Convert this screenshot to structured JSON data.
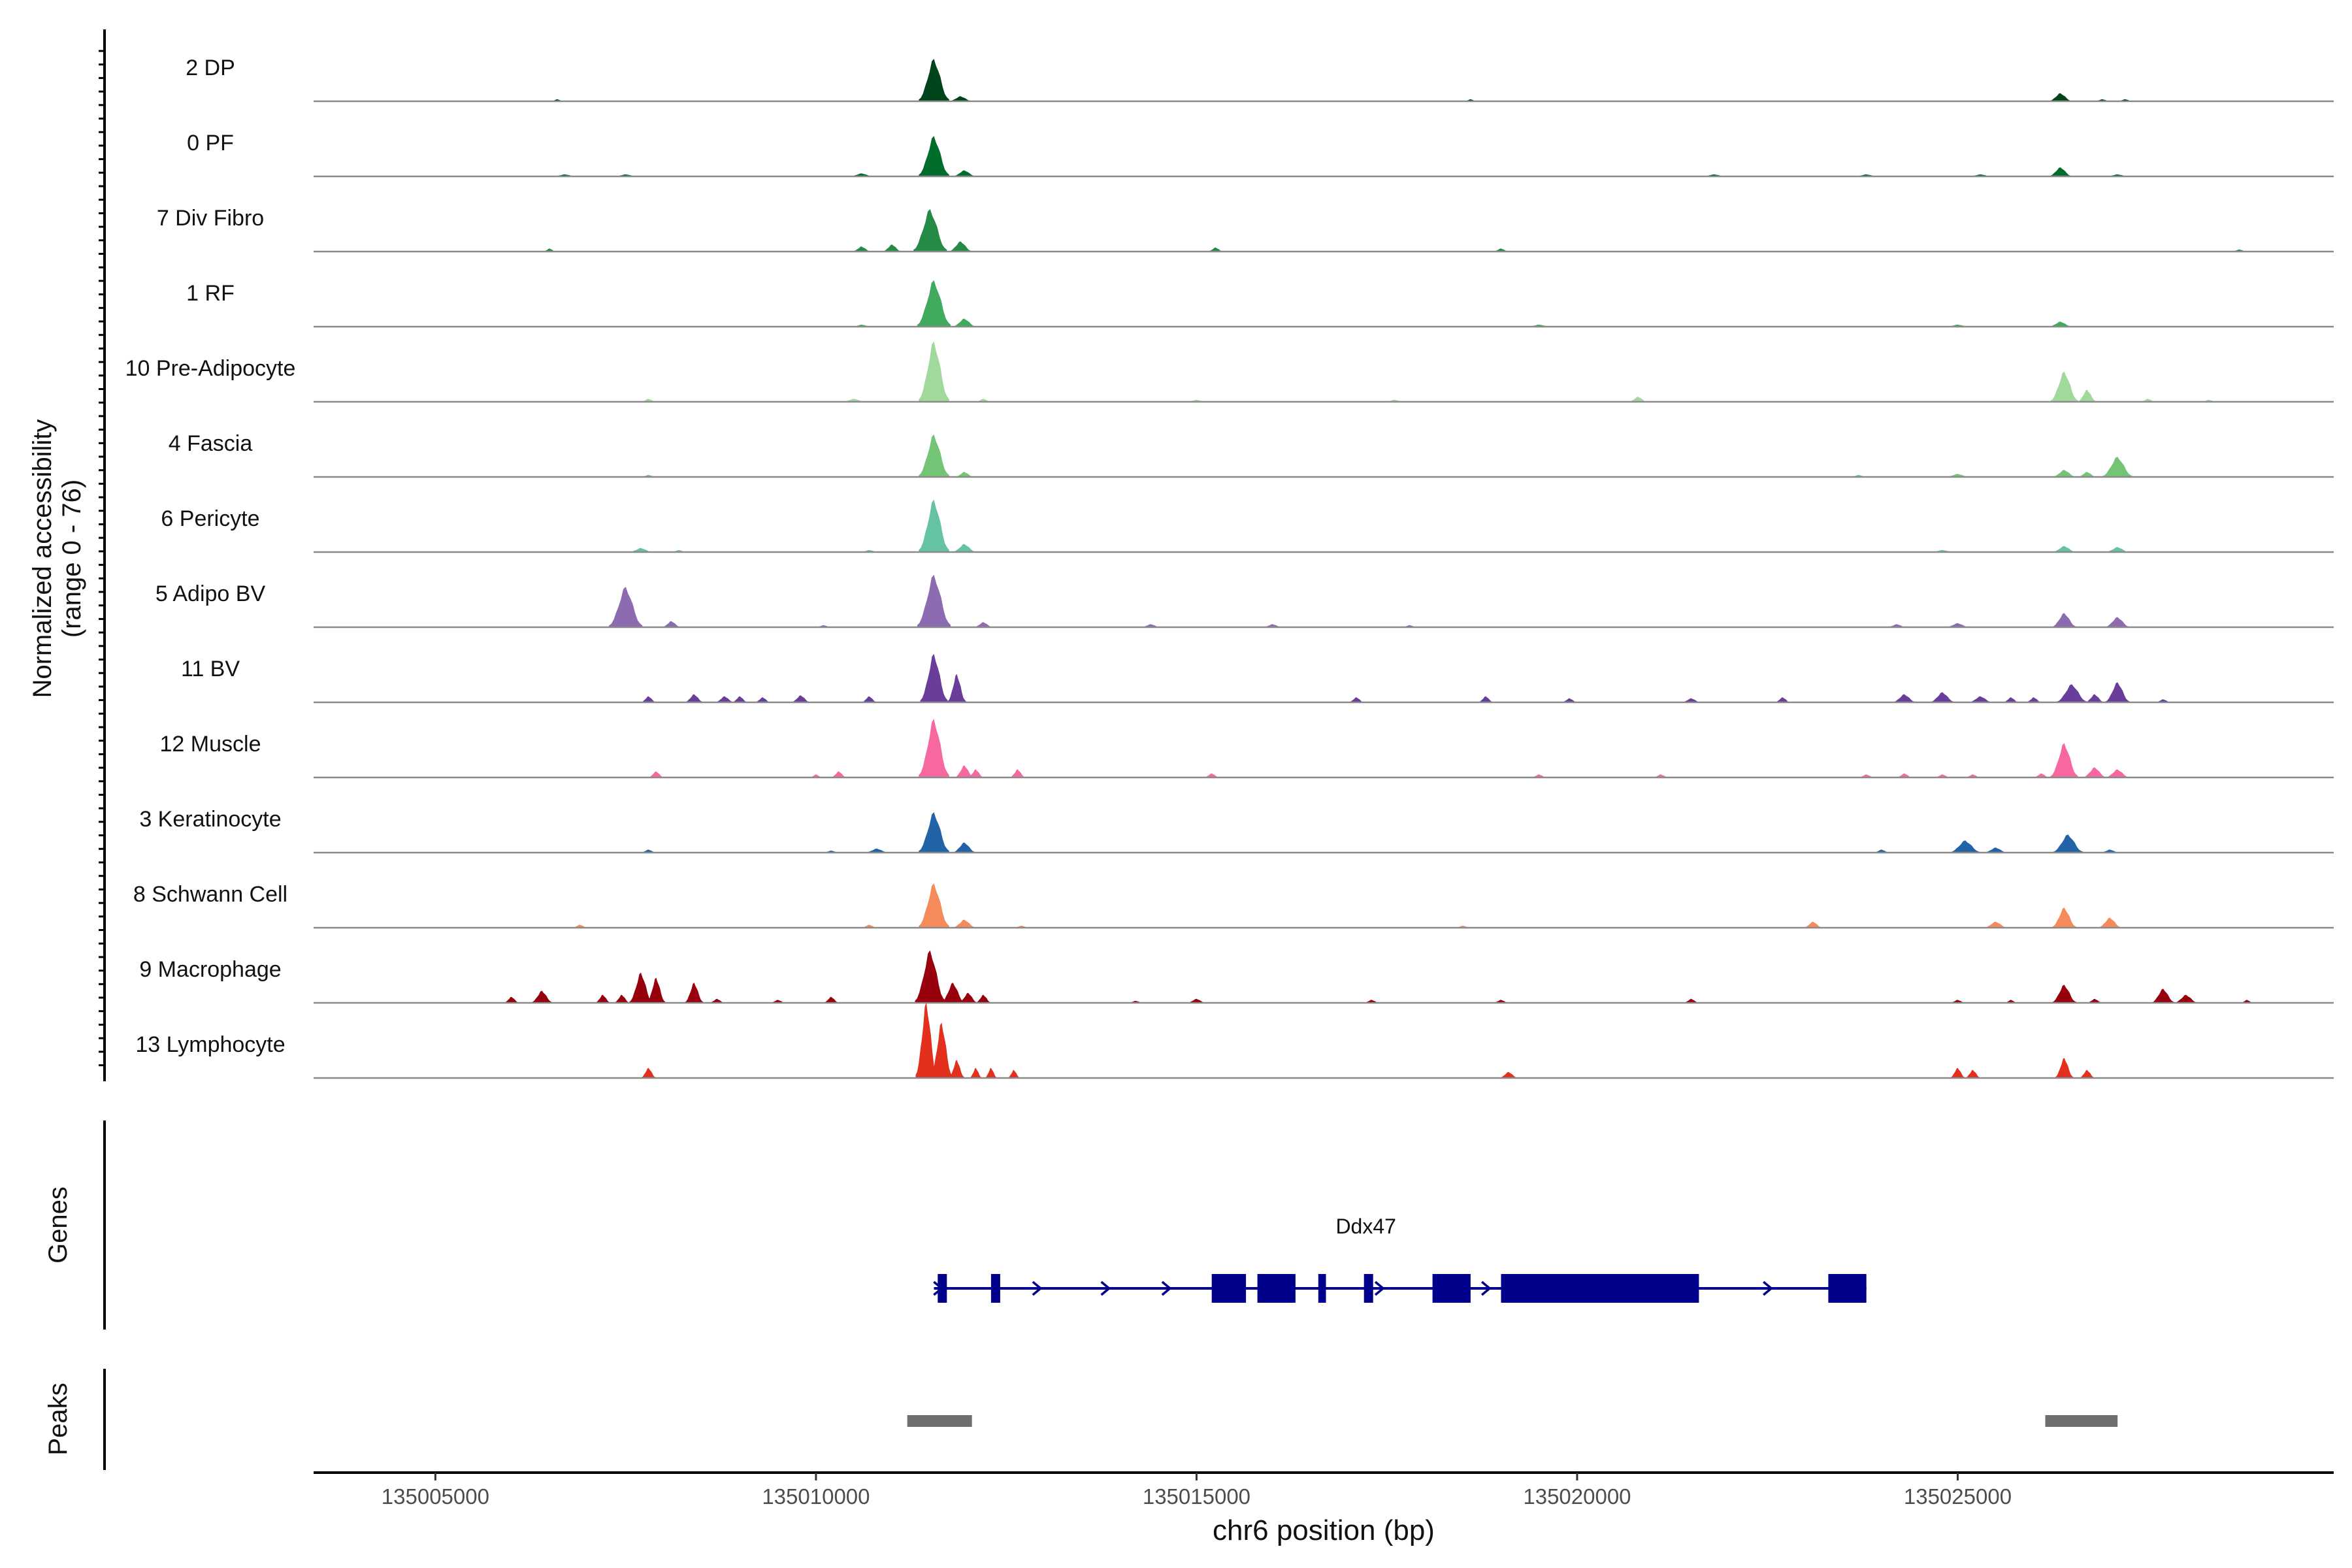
{
  "chart_data": {
    "type": "area",
    "title": "",
    "chromosome": "chr6",
    "xlabel": "chr6 position (bp)",
    "ylabel_line1": "Normalized accessibility",
    "ylabel_line2": "(range 0 - 76)",
    "yrange": [
      0,
      76
    ],
    "xlim": [
      135003400,
      135029940
    ],
    "xticks": [
      135005000,
      135010000,
      135015000,
      135020000,
      135025000
    ],
    "xtick_labels": [
      "135005000",
      "135010000",
      "135015000",
      "135020000",
      "135025000"
    ],
    "tracks": [
      {
        "name": "2 DP",
        "color": "#00441b",
        "peaks": [
          [
            135011550,
            42,
            200
          ],
          [
            135026350,
            8,
            150
          ],
          [
            135011900,
            5,
            150
          ],
          [
            135006600,
            2,
            80
          ],
          [
            135018600,
            2,
            80
          ],
          [
            135026900,
            2,
            100
          ],
          [
            135027200,
            2,
            100
          ]
        ]
      },
      {
        "name": "0 PF",
        "color": "#006d2c",
        "peaks": [
          [
            135011550,
            40,
            200
          ],
          [
            135011950,
            6,
            150
          ],
          [
            135026350,
            9,
            150
          ],
          [
            135010600,
            3,
            150
          ],
          [
            135006700,
            2,
            150
          ],
          [
            135007500,
            2,
            150
          ],
          [
            135021800,
            2,
            150
          ],
          [
            135023800,
            2,
            150
          ],
          [
            135025300,
            2,
            150
          ],
          [
            135027100,
            2,
            150
          ]
        ]
      },
      {
        "name": "7 Div Fibro",
        "color": "#238b45",
        "peaks": [
          [
            135011500,
            42,
            220
          ],
          [
            135011900,
            10,
            150
          ],
          [
            135011000,
            7,
            120
          ],
          [
            135010600,
            5,
            120
          ],
          [
            135015250,
            4,
            100
          ],
          [
            135019000,
            3,
            100
          ],
          [
            135006500,
            3,
            80
          ],
          [
            135028700,
            2,
            100
          ]
        ]
      },
      {
        "name": "1 RF",
        "color": "#41ab5d",
        "peaks": [
          [
            135011550,
            46,
            220
          ],
          [
            135011950,
            8,
            150
          ],
          [
            135026350,
            5,
            150
          ],
          [
            135010600,
            2,
            120
          ],
          [
            135019500,
            2,
            150
          ],
          [
            135025000,
            2,
            150
          ]
        ]
      },
      {
        "name": "10 Pre-Adipocyte",
        "color": "#a1d99b",
        "peaks": [
          [
            135011550,
            60,
            200
          ],
          [
            135026400,
            30,
            180
          ],
          [
            135026700,
            12,
            120
          ],
          [
            135020800,
            5,
            120
          ],
          [
            135007800,
            3,
            100
          ],
          [
            135010500,
            3,
            150
          ],
          [
            135012200,
            3,
            100
          ],
          [
            135015000,
            2,
            120
          ],
          [
            135017600,
            2,
            120
          ],
          [
            135027500,
            3,
            100
          ],
          [
            135028300,
            2,
            100
          ]
        ]
      },
      {
        "name": "4 Fascia",
        "color": "#74c476",
        "peaks": [
          [
            135011550,
            42,
            200
          ],
          [
            135027100,
            20,
            200
          ],
          [
            135026400,
            7,
            150
          ],
          [
            135026700,
            5,
            120
          ],
          [
            135011950,
            5,
            120
          ],
          [
            135025000,
            3,
            150
          ],
          [
            135023700,
            2,
            100
          ],
          [
            135007800,
            2,
            100
          ]
        ]
      },
      {
        "name": "6 Pericyte",
        "color": "#66c2a4",
        "peaks": [
          [
            135011550,
            52,
            200
          ],
          [
            135011950,
            8,
            150
          ],
          [
            135007700,
            4,
            150
          ],
          [
            135008200,
            2,
            100
          ],
          [
            135026400,
            6,
            150
          ],
          [
            135027100,
            5,
            150
          ],
          [
            135024800,
            2,
            150
          ],
          [
            135010700,
            2,
            120
          ]
        ]
      },
      {
        "name": "5 Adipo BV",
        "color": "#8c6bb1",
        "peaks": [
          [
            135007500,
            40,
            220
          ],
          [
            135011550,
            52,
            220
          ],
          [
            135026400,
            14,
            160
          ],
          [
            135027100,
            10,
            160
          ],
          [
            135008100,
            6,
            120
          ],
          [
            135012200,
            5,
            120
          ],
          [
            135014400,
            3,
            120
          ],
          [
            135024200,
            3,
            120
          ],
          [
            135025000,
            4,
            150
          ],
          [
            135016000,
            3,
            120
          ],
          [
            135017800,
            2,
            100
          ],
          [
            135010100,
            2,
            100
          ]
        ]
      },
      {
        "name": "11 BV",
        "color": "#6a3d9a",
        "peaks": [
          [
            135011550,
            48,
            180
          ],
          [
            135011850,
            28,
            120
          ],
          [
            135027100,
            20,
            160
          ],
          [
            135026500,
            18,
            200
          ],
          [
            135026800,
            8,
            120
          ],
          [
            135024800,
            10,
            160
          ],
          [
            135024300,
            8,
            150
          ],
          [
            135025300,
            6,
            150
          ],
          [
            135007800,
            6,
            100
          ],
          [
            135008400,
            8,
            120
          ],
          [
            135008800,
            6,
            120
          ],
          [
            135009000,
            6,
            100
          ],
          [
            135009300,
            5,
            100
          ],
          [
            135009800,
            7,
            120
          ],
          [
            135010700,
            6,
            100
          ],
          [
            135017100,
            5,
            100
          ],
          [
            135018800,
            6,
            100
          ],
          [
            135019900,
            4,
            100
          ],
          [
            135021500,
            4,
            120
          ],
          [
            135022700,
            5,
            100
          ],
          [
            135025700,
            5,
            100
          ],
          [
            135026000,
            5,
            100
          ],
          [
            135027700,
            3,
            100
          ]
        ]
      },
      {
        "name": "12 Muscle",
        "color": "#f768a1",
        "peaks": [
          [
            135011550,
            58,
            200
          ],
          [
            135011950,
            12,
            120
          ],
          [
            135012100,
            8,
            100
          ],
          [
            135012650,
            8,
            100
          ],
          [
            135026400,
            34,
            180
          ],
          [
            135026800,
            10,
            150
          ],
          [
            135027100,
            8,
            150
          ],
          [
            135010300,
            6,
            100
          ],
          [
            135010000,
            3,
            80
          ],
          [
            135007900,
            6,
            100
          ],
          [
            135015200,
            4,
            100
          ],
          [
            135019500,
            3,
            100
          ],
          [
            135021100,
            3,
            100
          ],
          [
            135023800,
            3,
            100
          ],
          [
            135024300,
            4,
            100
          ],
          [
            135024800,
            3,
            100
          ],
          [
            135025200,
            3,
            100
          ],
          [
            135026100,
            4,
            100
          ]
        ]
      },
      {
        "name": "3 Keratinocyte",
        "color": "#2163a6",
        "peaks": [
          [
            135011550,
            40,
            200
          ],
          [
            135011950,
            10,
            150
          ],
          [
            135026450,
            18,
            200
          ],
          [
            135025100,
            12,
            200
          ],
          [
            135025500,
            5,
            150
          ],
          [
            135010800,
            4,
            150
          ],
          [
            135007800,
            3,
            100
          ],
          [
            135027000,
            3,
            120
          ],
          [
            135024000,
            3,
            100
          ],
          [
            135010200,
            2,
            100
          ]
        ]
      },
      {
        "name": "8 Schwann Cell",
        "color": "#f58b5a",
        "peaks": [
          [
            135011550,
            44,
            200
          ],
          [
            135011950,
            8,
            150
          ],
          [
            135026400,
            20,
            160
          ],
          [
            135027000,
            10,
            150
          ],
          [
            135023100,
            6,
            120
          ],
          [
            135025500,
            6,
            150
          ],
          [
            135010700,
            3,
            100
          ],
          [
            135006900,
            3,
            100
          ],
          [
            135012700,
            2,
            100
          ],
          [
            135018500,
            2,
            100
          ]
        ]
      },
      {
        "name": "9 Macrophage",
        "color": "#99000d",
        "peaks": [
          [
            135007700,
            30,
            150
          ],
          [
            135007900,
            25,
            120
          ],
          [
            135008400,
            20,
            120
          ],
          [
            135006400,
            12,
            140
          ],
          [
            135006000,
            6,
            100
          ],
          [
            135007200,
            8,
            100
          ],
          [
            135007450,
            8,
            100
          ],
          [
            135008700,
            4,
            100
          ],
          [
            135011500,
            52,
            200
          ],
          [
            135011800,
            20,
            150
          ],
          [
            135012000,
            10,
            120
          ],
          [
            135012200,
            8,
            100
          ],
          [
            135010200,
            6,
            100
          ],
          [
            135026400,
            18,
            160
          ],
          [
            135027700,
            14,
            150
          ],
          [
            135028000,
            8,
            150
          ],
          [
            135028800,
            3,
            80
          ],
          [
            135025000,
            3,
            100
          ],
          [
            135021500,
            4,
            100
          ],
          [
            135019000,
            3,
            100
          ],
          [
            135017300,
            3,
            100
          ],
          [
            135015000,
            4,
            120
          ],
          [
            135014200,
            2,
            100
          ],
          [
            135026800,
            4,
            100
          ],
          [
            135025700,
            3,
            80
          ],
          [
            135009500,
            3,
            100
          ]
        ]
      },
      {
        "name": "13 Lymphocyte",
        "color": "#e2301c",
        "peaks": [
          [
            135011450,
            75,
            140
          ],
          [
            135011650,
            55,
            140
          ],
          [
            135011850,
            18,
            100
          ],
          [
            135012100,
            10,
            80
          ],
          [
            135012300,
            10,
            80
          ],
          [
            135012600,
            8,
            80
          ],
          [
            135007800,
            10,
            100
          ],
          [
            135019100,
            6,
            120
          ],
          [
            135025000,
            10,
            100
          ],
          [
            135025200,
            8,
            100
          ],
          [
            135026400,
            20,
            120
          ],
          [
            135026700,
            8,
            100
          ]
        ]
      }
    ],
    "gene": {
      "name": "Ddx47",
      "color": "#00008b",
      "start": 135011550,
      "end": 135023800,
      "strand": "+",
      "exons": [
        [
          135011600,
          135011720
        ],
        [
          135012300,
          135012420
        ],
        [
          135015200,
          135015650
        ],
        [
          135015800,
          135016300
        ],
        [
          135016600,
          135016700
        ],
        [
          135017200,
          135017320
        ],
        [
          135018100,
          135018600
        ],
        [
          135019000,
          135021600
        ],
        [
          135023300,
          135023800
        ]
      ],
      "arrows": [
        135011600,
        135012900,
        135013800,
        135014600,
        135017400,
        135018800,
        135022500
      ]
    },
    "peaks_track": [
      [
        135011200,
        135012050
      ],
      [
        135026150,
        135027100
      ]
    ],
    "peaks_color": "#6e6e6e",
    "panel_labels": {
      "genes": "Genes",
      "peaks": "Peaks"
    }
  }
}
